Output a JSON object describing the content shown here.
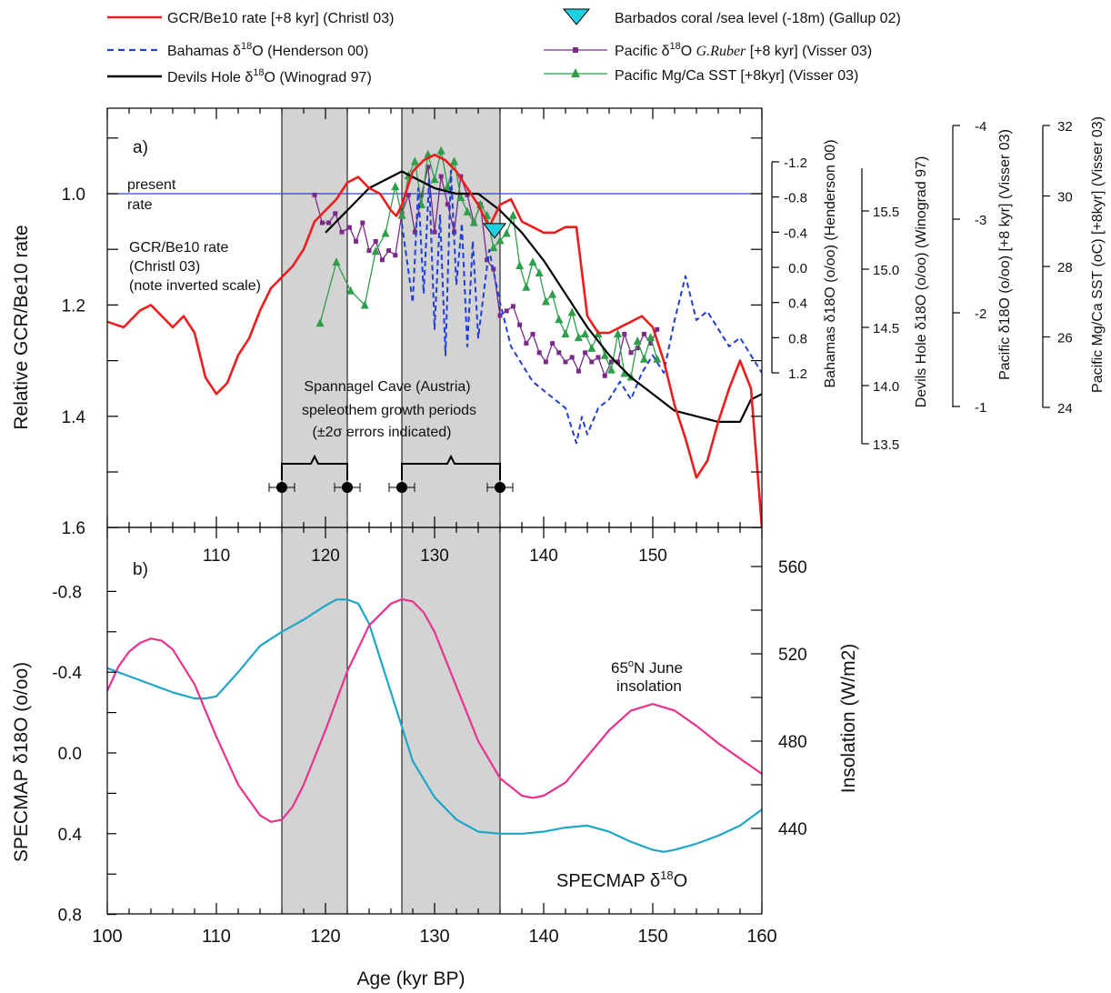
{
  "colors": {
    "gcr": "#ee1c1c",
    "bahamas": "#1f3fd6",
    "devils": "#000000",
    "barbados": "#1fd0e0",
    "pacific_d18o": "#7b2a8a",
    "pacific_mgca": "#2e9e4a",
    "present_rate": "#3344cc",
    "insolation": "#e8328c",
    "specmap": "#1ea6c8",
    "shade": "#d3d3d3"
  },
  "legend": {
    "gcr": "GCR/Be10 rate [+8 kyr] (Christl 03)",
    "bahamas_pre": "Bahamas δ",
    "bahamas_sup": "18",
    "bahamas_post": "O (Henderson 00)",
    "devils_pre": "Devils Hole δ",
    "devils_sup": "18",
    "devils_post": "O (Winograd 97)",
    "barbados": "Barbados coral /sea level (-18m) (Gallup 02)",
    "pacific_d18o_pre": "Pacific δ",
    "pacific_d18o_sup": "18",
    "pacific_d18o_mid": "O  ",
    "pacific_d18o_species": "G.Ruber",
    "pacific_d18o_post": " [+8 kyr] (Visser 03)",
    "pacific_mgca": "Pacific Mg/Ca SST [+8kyr] (Visser 03)"
  },
  "annotations": {
    "panel_a": "a)",
    "panel_b": "b)",
    "present_rate_line1": "present",
    "present_rate_line2": "rate",
    "gcr_note1": "GCR/Be10 rate",
    "gcr_note2": "(Christl 03)",
    "gcr_note3": "(note inverted scale)",
    "spannagel1": "Spannagel Cave (Austria)",
    "spannagel2": "speleothem growth periods",
    "spannagel3": "(±2σ errors indicated)",
    "insol_label1_pre": "65",
    "insol_label1_sup": "o",
    "insol_label1_post": "N June",
    "insol_label2": "insolation",
    "specmap_pre": "SPECMAP δ",
    "specmap_sup": "18",
    "specmap_post": "O"
  },
  "axes": {
    "x_label": "Age (kyr BP)",
    "a_left_label": "Relative GCR/Be10 rate",
    "a_left_ticks": [
      "1.0",
      "1.2",
      "1.4",
      "1.6"
    ],
    "a_mid_ticks": [
      "110",
      "120",
      "130",
      "140",
      "150"
    ],
    "bahamas_label": "Bahamas δ18O (o/oo) (Henderson 00)",
    "bahamas_ticks": [
      "-1.2",
      "-0.8",
      "-0.4",
      "0.0",
      "0.4",
      "0.8",
      "1.2"
    ],
    "devils_label": "Devils Hole δ18O (o/oo) (Winograd 97)",
    "devils_ticks": [
      "15.5",
      "15.0",
      "14.5",
      "14.0",
      "13.5"
    ],
    "pac_d18o_label": "Pacific δ18O (o/oo) [+8 kyr] (Visser 03)",
    "pac_d18o_ticks": [
      "-4",
      "-3",
      "-2",
      "-1"
    ],
    "pac_sst_label": "Pacific Mg/Ca SST (oC) [+8kyr] (Visser 03)",
    "pac_sst_ticks": [
      "32",
      "30",
      "28",
      "26",
      "24"
    ],
    "b_left_label": "SPECMAP δ18O (o/oo)",
    "b_left_ticks": [
      "-0.8",
      "-0.4",
      "0.0",
      "0.4",
      "0.8"
    ],
    "b_right_label": "Insolation (W/m2)",
    "b_right_ticks": [
      "560",
      "520",
      "480",
      "440"
    ],
    "x_ticks": [
      "100",
      "110",
      "120",
      "130",
      "140",
      "150",
      "160"
    ]
  },
  "chart_data": [
    {
      "type": "line",
      "panel": "a",
      "xlim": [
        100,
        160
      ],
      "ylim_left_inverted": [
        0.85,
        1.6
      ],
      "shaded_periods": [
        [
          116,
          122
        ],
        [
          127,
          136
        ]
      ],
      "spannagel_points": [
        116,
        122,
        127,
        136
      ],
      "present_rate": 1.0,
      "series": [
        {
          "name": "GCR/Be10 rate [+8 kyr] (Christl 03)",
          "x": [
            100,
            101.5,
            103,
            104,
            105,
            106,
            107,
            108,
            109,
            110,
            111,
            112,
            113,
            114,
            115,
            116,
            117,
            118,
            119,
            120,
            121,
            122,
            123,
            124,
            125,
            126,
            126.5,
            127,
            128,
            129,
            130,
            131,
            132,
            133,
            134,
            135,
            136,
            137,
            138,
            139,
            140,
            141,
            142,
            143,
            144,
            145,
            146,
            147,
            148,
            149,
            150,
            151,
            152,
            153,
            154,
            155,
            156,
            157,
            158,
            159,
            160
          ],
          "y": [
            1.23,
            1.24,
            1.21,
            1.2,
            1.22,
            1.24,
            1.22,
            1.25,
            1.33,
            1.36,
            1.34,
            1.29,
            1.26,
            1.21,
            1.17,
            1.15,
            1.13,
            1.1,
            1.05,
            1.03,
            1.01,
            0.98,
            0.97,
            0.99,
            1.0,
            1.03,
            1.04,
            1.02,
            0.96,
            0.94,
            0.93,
            0.94,
            0.96,
            0.99,
            1.02,
            1.06,
            1.02,
            1.01,
            1.05,
            1.06,
            1.07,
            1.07,
            1.06,
            1.06,
            1.22,
            1.25,
            1.25,
            1.24,
            1.23,
            1.22,
            1.24,
            1.3,
            1.38,
            1.44,
            1.51,
            1.48,
            1.41,
            1.35,
            1.3,
            1.35,
            1.6
          ]
        },
        {
          "name": "Bahamas δ18O (Henderson 00)",
          "x": [
            127,
            128,
            128.5,
            129,
            129.5,
            130,
            130.5,
            131,
            131.5,
            132,
            132.5,
            133,
            133.5,
            134,
            135,
            136,
            137,
            138,
            139,
            140,
            141,
            142,
            143,
            143.5,
            144,
            145,
            146,
            147,
            148,
            149,
            150,
            151,
            152,
            153,
            154,
            155,
            156,
            157,
            158,
            159,
            160
          ],
          "y": [
            -0.5,
            0.4,
            -0.9,
            0.3,
            -1.0,
            0.7,
            -0.6,
            1.0,
            -1.1,
            0.2,
            -0.5,
            0.9,
            -0.3,
            0.8,
            -0.2,
            0.4,
            0.9,
            1.1,
            1.3,
            1.4,
            1.5,
            1.6,
            2.0,
            1.7,
            1.9,
            1.6,
            1.5,
            1.3,
            1.5,
            1.2,
            1.0,
            1.2,
            0.6,
            0.1,
            0.6,
            0.5,
            0.7,
            0.9,
            0.8,
            1.0,
            1.2
          ]
        },
        {
          "name": "Devils Hole δ18O (Winograd 97)",
          "x": [
            120,
            122,
            124,
            126,
            127,
            128,
            130,
            132,
            134,
            136,
            138,
            140,
            142,
            144,
            146,
            148,
            150,
            152,
            154,
            156,
            158,
            159,
            160
          ],
          "y": [
            1.07,
            1.03,
            0.99,
            0.97,
            0.96,
            0.97,
            0.99,
            1.0,
            1.0,
            1.03,
            1.07,
            1.12,
            1.18,
            1.24,
            1.29,
            1.33,
            1.36,
            1.39,
            1.4,
            1.41,
            1.41,
            1.37,
            1.36
          ]
        },
        {
          "name": "Barbados coral /sea level (-18m) (Gallup 02)",
          "x": [
            135.5
          ],
          "y": [
            1.07
          ]
        },
        {
          "name": "Pacific δ18O G.Ruber [+8 kyr] (Visser 03)",
          "x": [
            119,
            119.7,
            120.3,
            120.9,
            121.5,
            122.2,
            122.8,
            123.4,
            124,
            124.6,
            125.2,
            125.8,
            126.4,
            127,
            127.6,
            128.2,
            128.8,
            129.4,
            130,
            130.6,
            131.2,
            131.8,
            132.4,
            133,
            133.6,
            134.2,
            134.8,
            135.4,
            136,
            136.6,
            137.2,
            137.8,
            138.4,
            139,
            139.6,
            140.2,
            140.8,
            141.4,
            142,
            142.6,
            143.2,
            143.8,
            144.4,
            145,
            145.6,
            146.2,
            146.8,
            147.4,
            148,
            148.6,
            149.2,
            149.8,
            150.4
          ],
          "y": [
            -3.3,
            -3.0,
            -3.0,
            -3.1,
            -2.9,
            -2.95,
            -2.8,
            -3.0,
            -2.7,
            -2.8,
            -2.6,
            -2.7,
            -2.65,
            -3.1,
            -3.3,
            -2.9,
            -3.3,
            -3.6,
            -2.9,
            -3.5,
            -3.2,
            -2.9,
            -3.5,
            -3.3,
            -3.0,
            -3.2,
            -2.6,
            -2.5,
            -2.0,
            -2.05,
            -2.1,
            -1.9,
            -1.7,
            -1.8,
            -1.6,
            -1.5,
            -1.7,
            -1.6,
            -1.5,
            -1.55,
            -1.4,
            -1.6,
            -1.5,
            -1.55,
            -1.35,
            -1.5,
            -1.5,
            -1.8,
            -1.6,
            -1.65,
            -1.8,
            -1.7,
            -1.85
          ]
        },
        {
          "name": "Pacific Mg/Ca SST [+8kyr] (Visser 03)",
          "x": [
            119.5,
            121,
            122.3,
            123.6,
            124.6,
            125.5,
            126.4,
            127,
            127.6,
            128.2,
            128.8,
            129.4,
            130,
            130.6,
            131.2,
            131.8,
            132.4,
            133,
            133.6,
            134.2,
            134.8,
            135.4,
            136,
            136.6,
            137.2,
            137.8,
            138.4,
            139,
            139.6,
            140.2,
            140.8,
            141.4,
            142,
            142.6,
            143.2,
            143.8,
            144.4,
            145,
            145.6,
            146.2,
            146.8,
            147.4,
            148,
            148.6,
            149.2,
            149.8,
            150.4
          ],
          "y": [
            26.5,
            28.2,
            27.4,
            27.0,
            28.5,
            29.0,
            30.3,
            29.5,
            30.6,
            31.0,
            29.8,
            31.2,
            30.5,
            31.3,
            30.3,
            31.0,
            30.0,
            29.6,
            29.3,
            29.8,
            29.5,
            28.6,
            28.8,
            29.0,
            29.5,
            28.1,
            27.5,
            28.2,
            27.9,
            27.1,
            27.3,
            26.6,
            26.2,
            26.8,
            26.1,
            26.2,
            25.8,
            26.2,
            25.6,
            25.2,
            26.2,
            25.1,
            25.0,
            26.0,
            25.5,
            26.1,
            25.5
          ]
        }
      ]
    },
    {
      "type": "line",
      "panel": "b",
      "xlim": [
        100,
        160
      ],
      "ylim_left_inverted": [
        -1.0,
        0.8
      ],
      "ylim_right": [
        420,
        580
      ],
      "series": [
        {
          "name": "SPECMAP δ18O",
          "x": [
            100,
            102,
            104,
            106,
            108,
            109,
            110,
            112,
            114,
            116,
            118,
            120,
            121,
            122,
            123,
            124,
            126,
            128,
            130,
            132,
            134,
            136,
            138,
            140,
            142,
            144,
            146,
            148,
            150,
            151,
            152,
            154,
            156,
            158,
            160
          ],
          "y": [
            -0.42,
            -0.38,
            -0.34,
            -0.3,
            -0.27,
            -0.27,
            -0.28,
            -0.4,
            -0.53,
            -0.6,
            -0.66,
            -0.73,
            -0.76,
            -0.76,
            -0.74,
            -0.64,
            -0.3,
            0.04,
            0.22,
            0.33,
            0.39,
            0.4,
            0.4,
            0.39,
            0.37,
            0.36,
            0.39,
            0.44,
            0.48,
            0.49,
            0.48,
            0.45,
            0.41,
            0.36,
            0.28
          ]
        },
        {
          "name": "65oN June insolation",
          "x": [
            100,
            101,
            102,
            103,
            104,
            105,
            106,
            108,
            110,
            112,
            114,
            115,
            116,
            117,
            118,
            120,
            122,
            124,
            126,
            127,
            128,
            129,
            130,
            132,
            134,
            136,
            138,
            139,
            140,
            142,
            144,
            146,
            148,
            150,
            152,
            154,
            156,
            158,
            160
          ],
          "y": [
            503,
            514,
            521,
            525,
            527,
            526,
            522,
            506,
            482,
            460,
            446,
            443,
            444,
            450,
            460,
            485,
            512,
            533,
            543,
            545,
            544,
            539,
            530,
            505,
            480,
            463,
            455,
            454,
            455,
            461,
            473,
            485,
            494,
            497,
            494,
            487,
            479,
            472,
            465
          ]
        }
      ]
    }
  ]
}
